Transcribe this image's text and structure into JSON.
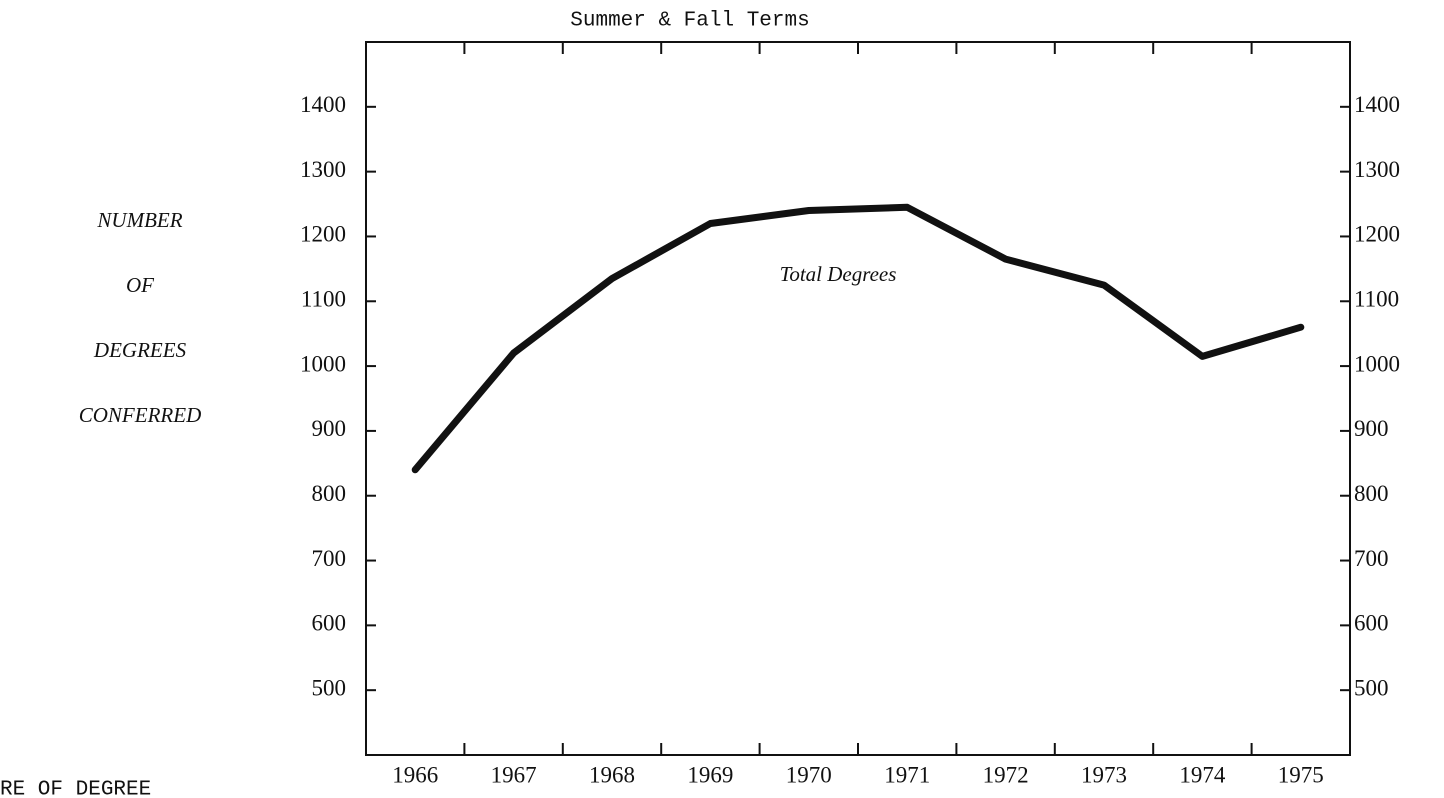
{
  "chart_data": {
    "type": "line",
    "title": "Summer & Fall Terms",
    "y_label_lines": [
      "NUMBER",
      "OF",
      "DEGREES",
      "CONFERRED"
    ],
    "annotation": "Total Degrees",
    "footer": "RE OF DEGREE",
    "categories": [
      "1966",
      "1967",
      "1968",
      "1969",
      "1970",
      "1971",
      "1972",
      "1973",
      "1974",
      "1975"
    ],
    "series": [
      {
        "name": "Total Degrees",
        "color": "#111111",
        "values": [
          840,
          1020,
          1135,
          1220,
          1240,
          1245,
          1165,
          1125,
          1015,
          1060
        ]
      }
    ],
    "ylim": [
      400,
      1500
    ],
    "yticks": [
      500,
      600,
      700,
      800,
      900,
      1000,
      1100,
      1200,
      1300,
      1400
    ],
    "y2lim": [
      400,
      1500
    ],
    "y2ticks": [
      500,
      600,
      700,
      800,
      900,
      1000,
      1100,
      1200,
      1300,
      1400
    ],
    "grid": false
  }
}
